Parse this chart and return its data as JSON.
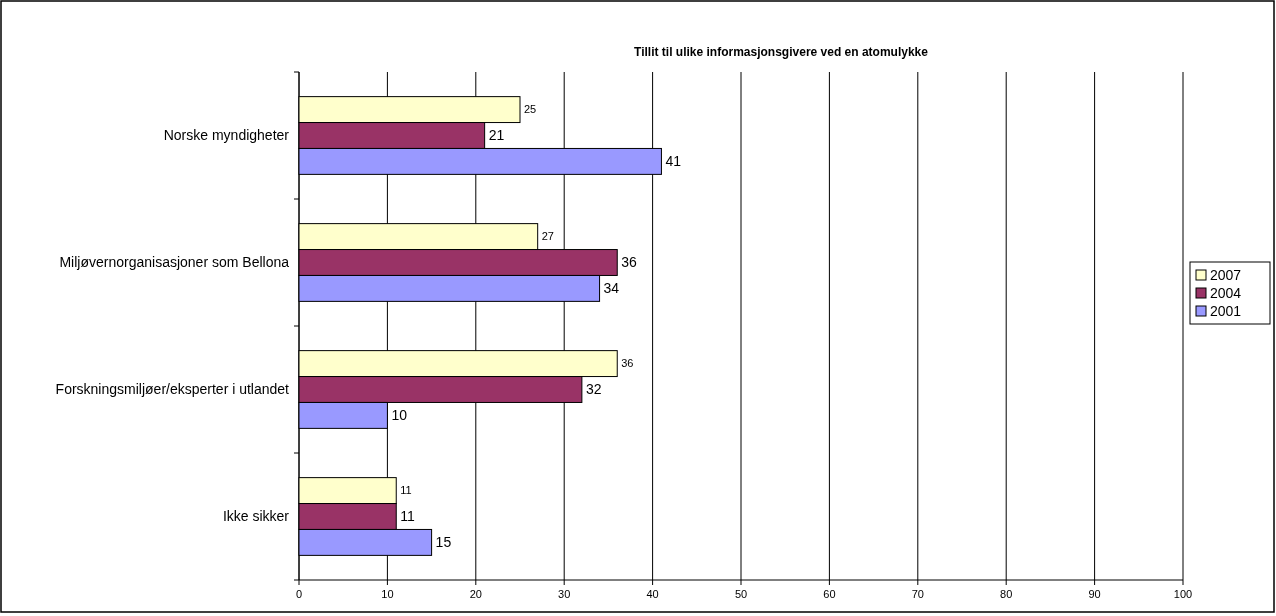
{
  "chart_data": {
    "type": "bar",
    "orientation": "horizontal",
    "title": "Tillit til ulike informasjonsgivere ved en atomulykke",
    "categories": [
      "Norske myndigheter",
      "Miljøvernorganisasjoner som Bellona",
      "Forskningsmiljøer/eksperter i utlandet",
      "Ikke sikker"
    ],
    "series": [
      {
        "name": "2007",
        "color": "#ffffcc",
        "values": [
          25,
          27,
          36,
          11
        ]
      },
      {
        "name": "2004",
        "color": "#993366",
        "values": [
          21,
          36,
          32,
          11
        ]
      },
      {
        "name": "2001",
        "color": "#9999ff",
        "values": [
          41,
          34,
          10,
          15
        ]
      }
    ],
    "xlim": [
      0,
      100
    ],
    "xticks": [
      0,
      10,
      20,
      30,
      40,
      50,
      60,
      70,
      80,
      90,
      100
    ],
    "grid": "x",
    "legend": "right",
    "data_labels": true
  }
}
